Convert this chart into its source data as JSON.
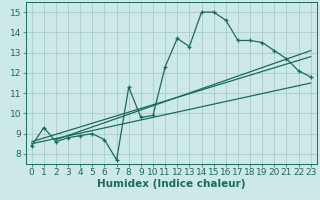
{
  "title": "",
  "xlabel": "Humidex (Indice chaleur)",
  "bg_color": "#cce8e8",
  "grid_color": "#aacccc",
  "line_color": "#1a6b5a",
  "xlim": [
    -0.5,
    23.5
  ],
  "ylim": [
    7.5,
    15.5
  ],
  "xticks": [
    0,
    1,
    2,
    3,
    4,
    5,
    6,
    7,
    8,
    9,
    10,
    11,
    12,
    13,
    14,
    15,
    16,
    17,
    18,
    19,
    20,
    21,
    22,
    23
  ],
  "yticks": [
    8,
    9,
    10,
    11,
    12,
    13,
    14,
    15
  ],
  "main_line": {
    "x": [
      0,
      1,
      2,
      3,
      4,
      5,
      6,
      7,
      8,
      9,
      10,
      11,
      12,
      13,
      14,
      15,
      16,
      17,
      18,
      19,
      20,
      21,
      22,
      23
    ],
    "y": [
      8.4,
      9.3,
      8.6,
      8.8,
      8.9,
      9.0,
      8.7,
      7.7,
      11.3,
      9.8,
      9.9,
      12.3,
      13.7,
      13.3,
      15.0,
      15.0,
      14.6,
      13.6,
      13.6,
      13.5,
      13.1,
      12.7,
      12.1,
      11.8
    ]
  },
  "trend_line1": {
    "x": [
      0,
      23
    ],
    "y": [
      8.5,
      11.5
    ]
  },
  "trend_line2": {
    "x": [
      0,
      23
    ],
    "y": [
      8.6,
      12.8
    ]
  },
  "trend_line3": {
    "x": [
      2,
      23
    ],
    "y": [
      8.7,
      13.1
    ]
  },
  "font_color": "#1a6b5a",
  "xlabel_fontsize": 7.5,
  "tick_fontsize": 6.5
}
